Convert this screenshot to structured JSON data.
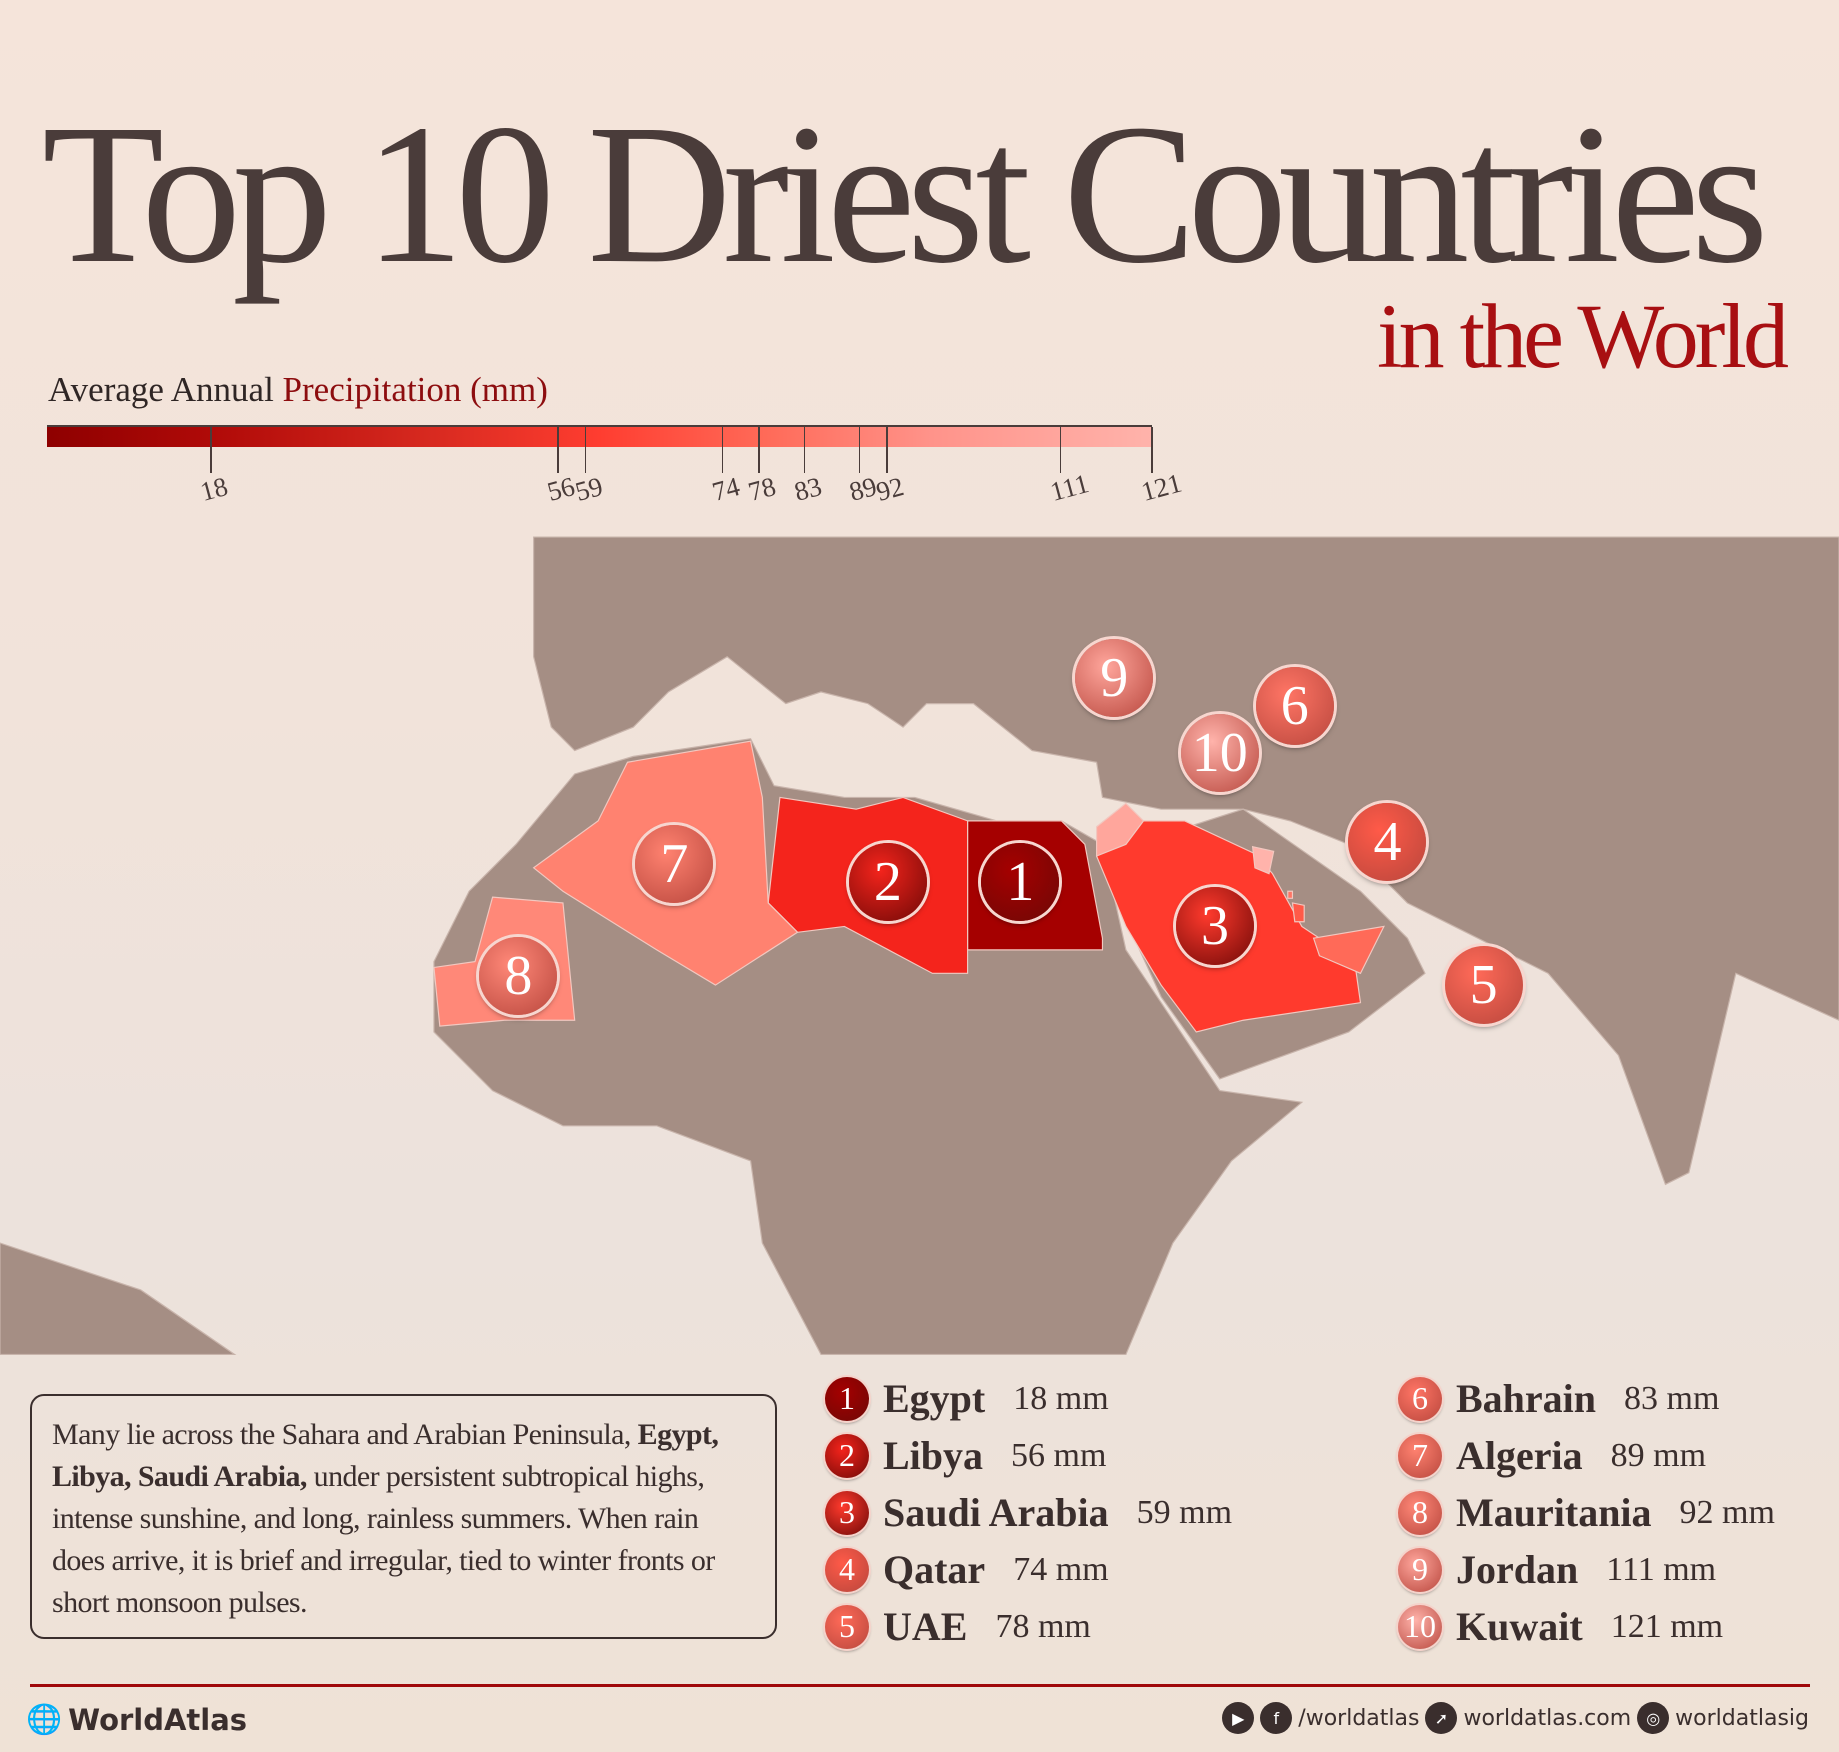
{
  "title": "Top 10 Driest Countries",
  "subtitle": "in the World",
  "chart_data": {
    "type": "choropleth-map",
    "title": "Top 10 Driest Countries in the World",
    "legend": {
      "title_prefix": "Average Annual",
      "title_highlight": "Precipitation (mm)",
      "ticks": [
        18,
        56,
        59,
        74,
        78,
        83,
        89,
        92,
        111,
        121
      ],
      "range": [
        0,
        121
      ],
      "color_low": "#8e0000",
      "color_high": "#ffb3ab"
    },
    "countries": [
      {
        "rank": 1,
        "name": "Egypt",
        "value": 18,
        "label": "18 mm",
        "color": "#a50000"
      },
      {
        "rank": 2,
        "name": "Libya",
        "value": 56,
        "label": "56 mm",
        "color": "#f4241c"
      },
      {
        "rank": 3,
        "name": "Saudi Arabia",
        "value": 59,
        "label": "59 mm",
        "color": "#ff3a2d"
      },
      {
        "rank": 4,
        "name": "Qatar",
        "value": 74,
        "label": "74 mm",
        "color": "#ff5a48"
      },
      {
        "rank": 5,
        "name": "UAE",
        "value": 78,
        "label": "78 mm",
        "color": "#ff6a58"
      },
      {
        "rank": 6,
        "name": "Bahrain",
        "value": 83,
        "label": "83 mm",
        "color": "#ff7565"
      },
      {
        "rank": 7,
        "name": "Algeria",
        "value": 89,
        "label": "89 mm",
        "color": "#ff8270"
      },
      {
        "rank": 8,
        "name": "Mauritania",
        "value": 92,
        "label": "92 mm",
        "color": "#ff8878"
      },
      {
        "rank": 9,
        "name": "Jordan",
        "value": 111,
        "label": "111 mm",
        "color": "#ffa69c"
      },
      {
        "rank": 10,
        "name": "Kuwait",
        "value": 121,
        "label": "121 mm",
        "color": "#ffb3ab"
      }
    ]
  },
  "description": {
    "lead": "Many lie across the Sahara and Arabian Peninsula,",
    "bold": "Egypt, Libya, Saudi Arabia,",
    "rest": "under persistent subtropical highs, intense sunshine, and long, rainless summers. When rain does arrive, it is brief and irregular, tied to winter fronts or short monsoon pulses."
  },
  "colors": {
    "land": "#a58e84",
    "title": "#4a3c3a",
    "accent": "#a80f12"
  },
  "footer": {
    "brand": "WorldAtlas",
    "social_handle": "/worldatlas",
    "website": "worldatlas.com",
    "instagram": "worldatlasig",
    "icons": [
      "globe-icon",
      "youtube-icon",
      "facebook-icon",
      "cursor-icon",
      "instagram-icon"
    ]
  }
}
